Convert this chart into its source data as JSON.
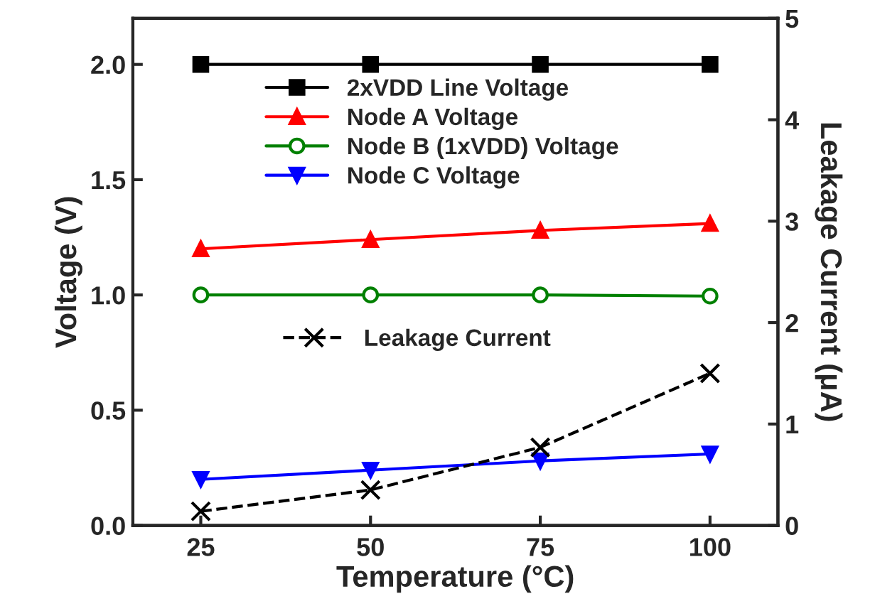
{
  "chart_data": {
    "type": "line",
    "xlabel": "Temperature (°C)",
    "ylabel": "Voltage (V)",
    "y2label": "Leakage Current (μA)",
    "x": [
      25,
      50,
      75,
      100
    ],
    "xlim": [
      15,
      110
    ],
    "xticks": [
      25,
      50,
      75,
      100
    ],
    "ylim": [
      0,
      2.2
    ],
    "yticks": [
      {
        "value": 0,
        "label": "0.0"
      },
      0.5,
      {
        "value": 1,
        "label": "1.0"
      },
      1.5,
      {
        "value": 2,
        "label": "2.0"
      }
    ],
    "y2lim": [
      0,
      5
    ],
    "y2ticks": [
      0,
      1,
      2,
      3,
      4,
      5
    ],
    "grid": false,
    "legend": "top",
    "line_style": "solid",
    "series": [
      {
        "name": "2xVDD Line Voltage",
        "color": "#000000",
        "marker": "square",
        "values": [
          2.0,
          2.0,
          2.0,
          2.0
        ]
      },
      {
        "name": "Node A Voltage",
        "color": "#ff0000",
        "marker": "triangle",
        "values": [
          1.2,
          1.24,
          1.28,
          1.31
        ]
      },
      {
        "name": "Node B (1xVDD) Voltage",
        "color": "#008000",
        "marker": "circle",
        "values": [
          1.0,
          1.0,
          1.0,
          0.995
        ]
      },
      {
        "name": "Node C Voltage",
        "color": "#0000ff",
        "marker": "triangle_down",
        "values": [
          0.2,
          0.24,
          0.28,
          0.31
        ]
      },
      {
        "name": "Leakage Current",
        "color": "#000000",
        "marker": "cross",
        "line_style": "dashed",
        "axis": "y2",
        "values": [
          0.14,
          0.35,
          0.77,
          1.5
        ]
      }
    ]
  }
}
